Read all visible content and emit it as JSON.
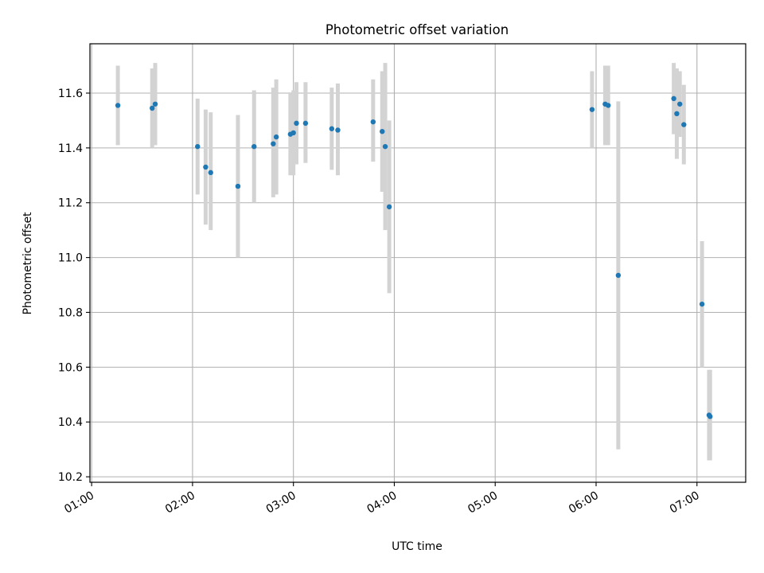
{
  "chart_data": {
    "type": "scatter",
    "title": "Photometric offset variation",
    "xlabel": "UTC time",
    "ylabel": "Photometric offset",
    "x_unit": "UTC hours",
    "xlim": [
      0.983,
      7.483
    ],
    "ylim": [
      10.18,
      11.78
    ],
    "grid": true,
    "x_ticks": [
      {
        "value": 1,
        "label": "01:00"
      },
      {
        "value": 2,
        "label": "02:00"
      },
      {
        "value": 3,
        "label": "03:00"
      },
      {
        "value": 4,
        "label": "04:00"
      },
      {
        "value": 5,
        "label": "05:00"
      },
      {
        "value": 6,
        "label": "06:00"
      },
      {
        "value": 7,
        "label": "07:00"
      }
    ],
    "y_ticks": [
      {
        "value": 10.2,
        "label": "10.2"
      },
      {
        "value": 10.4,
        "label": "10.4"
      },
      {
        "value": 10.6,
        "label": "10.6"
      },
      {
        "value": 10.8,
        "label": "10.8"
      },
      {
        "value": 11.0,
        "label": "11.0"
      },
      {
        "value": 11.2,
        "label": "11.2"
      },
      {
        "value": 11.4,
        "label": "11.4"
      },
      {
        "value": 11.6,
        "label": "11.6"
      }
    ],
    "colors": {
      "point": "#1f77b4",
      "errorbar": "#d3d3d3",
      "grid": "#b0b0b0",
      "axes": "#000000"
    },
    "points": [
      {
        "x": 1.26,
        "y": 11.555,
        "lo": 11.41,
        "hi": 11.7
      },
      {
        "x": 1.6,
        "y": 11.545,
        "lo": 11.4,
        "hi": 11.69
      },
      {
        "x": 1.63,
        "y": 11.56,
        "lo": 11.41,
        "hi": 11.71
      },
      {
        "x": 2.05,
        "y": 11.405,
        "lo": 11.23,
        "hi": 11.58
      },
      {
        "x": 2.13,
        "y": 11.33,
        "lo": 11.12,
        "hi": 11.54
      },
      {
        "x": 2.18,
        "y": 11.31,
        "lo": 11.1,
        "hi": 11.53
      },
      {
        "x": 2.45,
        "y": 11.26,
        "lo": 11.0,
        "hi": 11.52
      },
      {
        "x": 2.61,
        "y": 11.405,
        "lo": 11.2,
        "hi": 11.61
      },
      {
        "x": 2.8,
        "y": 11.415,
        "lo": 11.22,
        "hi": 11.62
      },
      {
        "x": 2.83,
        "y": 11.44,
        "lo": 11.23,
        "hi": 11.65
      },
      {
        "x": 2.97,
        "y": 11.45,
        "lo": 11.3,
        "hi": 11.6
      },
      {
        "x": 3.0,
        "y": 11.455,
        "lo": 11.3,
        "hi": 11.61
      },
      {
        "x": 3.03,
        "y": 11.49,
        "lo": 11.34,
        "hi": 11.64
      },
      {
        "x": 3.12,
        "y": 11.49,
        "lo": 11.345,
        "hi": 11.64
      },
      {
        "x": 3.38,
        "y": 11.47,
        "lo": 11.32,
        "hi": 11.62
      },
      {
        "x": 3.44,
        "y": 11.465,
        "lo": 11.3,
        "hi": 11.635
      },
      {
        "x": 3.79,
        "y": 11.495,
        "lo": 11.35,
        "hi": 11.65
      },
      {
        "x": 3.88,
        "y": 11.46,
        "lo": 11.24,
        "hi": 11.68
      },
      {
        "x": 3.91,
        "y": 11.405,
        "lo": 11.1,
        "hi": 11.71
      },
      {
        "x": 3.95,
        "y": 11.185,
        "lo": 10.87,
        "hi": 11.5
      },
      {
        "x": 5.96,
        "y": 11.54,
        "lo": 11.4,
        "hi": 11.68
      },
      {
        "x": 6.09,
        "y": 11.56,
        "lo": 11.41,
        "hi": 11.7
      },
      {
        "x": 6.12,
        "y": 11.555,
        "lo": 11.41,
        "hi": 11.7
      },
      {
        "x": 6.22,
        "y": 10.935,
        "lo": 10.3,
        "hi": 11.57
      },
      {
        "x": 6.77,
        "y": 11.58,
        "lo": 11.45,
        "hi": 11.71
      },
      {
        "x": 6.8,
        "y": 11.525,
        "lo": 11.36,
        "hi": 11.69
      },
      {
        "x": 6.83,
        "y": 11.56,
        "lo": 11.44,
        "hi": 11.68
      },
      {
        "x": 6.87,
        "y": 11.485,
        "lo": 11.34,
        "hi": 11.63
      },
      {
        "x": 7.05,
        "y": 10.83,
        "lo": 10.6,
        "hi": 11.06
      },
      {
        "x": 7.12,
        "y": 10.425,
        "lo": 10.26,
        "hi": 10.59
      },
      {
        "x": 7.13,
        "y": 10.42,
        "lo": 10.26,
        "hi": 10.59
      }
    ]
  }
}
